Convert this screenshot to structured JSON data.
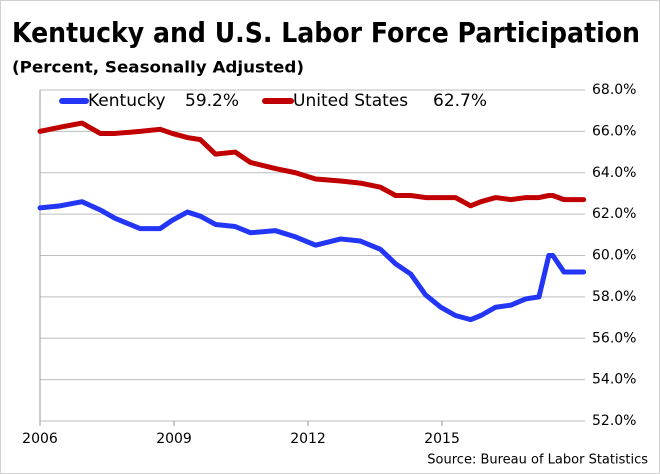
{
  "chart_data": {
    "type": "line",
    "title": "Kentucky and U.S. Labor Force Participation",
    "subtitle": "(Percent, Seasonally Adjusted)",
    "source": "Source: Bureau of Labor Statistics",
    "x": [
      2006.0,
      2006.45,
      2006.94,
      2007.35,
      2007.68,
      2008.24,
      2008.69,
      2008.96,
      2009.3,
      2009.59,
      2009.93,
      2010.37,
      2010.71,
      2011.27,
      2011.72,
      2012.17,
      2012.73,
      2013.17,
      2013.62,
      2013.96,
      2014.3,
      2014.63,
      2014.97,
      2015.3,
      2015.64,
      2015.87,
      2016.2,
      2016.54,
      2016.87,
      2017.17,
      2017.39,
      2017.48,
      2017.73,
      2018.17
    ],
    "series": [
      {
        "name": "Kentucky",
        "last_label": "59.2%",
        "color": "#2336f5",
        "values": [
          62.3,
          62.4,
          62.6,
          62.2,
          61.8,
          61.3,
          61.3,
          61.7,
          62.1,
          61.9,
          61.5,
          61.4,
          61.1,
          61.2,
          60.9,
          60.5,
          60.8,
          60.7,
          60.3,
          59.6,
          59.1,
          58.1,
          57.5,
          57.1,
          56.9,
          57.1,
          57.5,
          57.6,
          57.9,
          58.0,
          60.0,
          60.0,
          59.2,
          59.2
        ]
      },
      {
        "name": "United States",
        "last_label": "62.7%",
        "color": "#c00000",
        "values": [
          66.0,
          66.2,
          66.4,
          65.9,
          65.9,
          66.0,
          66.1,
          65.9,
          65.7,
          65.6,
          64.9,
          65.0,
          64.5,
          64.2,
          64.0,
          63.7,
          63.6,
          63.5,
          63.3,
          62.9,
          62.9,
          62.8,
          62.8,
          62.8,
          62.4,
          62.6,
          62.8,
          62.7,
          62.8,
          62.8,
          62.9,
          62.9,
          62.7,
          62.7
        ]
      }
    ],
    "xlim": [
      2006,
      2018.2
    ],
    "xticks": [
      2006,
      2009,
      2012,
      2015
    ],
    "ylim": [
      52,
      68
    ],
    "yticks": [
      {
        "value": 52,
        "label": "52.0%"
      },
      {
        "value": 54,
        "label": "54.0%"
      },
      {
        "value": 56,
        "label": "56.0%"
      },
      {
        "value": 58,
        "label": "58.0%"
      },
      {
        "value": 60,
        "label": "60.0%"
      },
      {
        "value": 62,
        "label": "62.0%"
      },
      {
        "value": 64,
        "label": "64.0%"
      },
      {
        "value": 66,
        "label": "66.0%"
      },
      {
        "value": 68,
        "label": "68.0%"
      }
    ],
    "grid": true,
    "legend": "top-left"
  }
}
